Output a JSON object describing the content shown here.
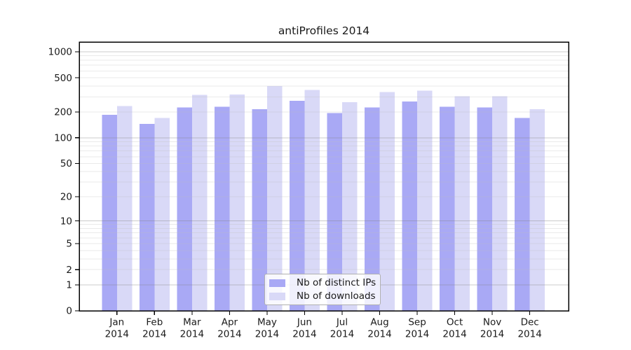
{
  "title": "antiProfiles 2014",
  "colors": {
    "ips_bar": "#a9a9f5",
    "downloads_bar": "#d9d9f7",
    "axis": "#000000",
    "text": "#1a1a1a",
    "legend_border": "#b0b0b0"
  },
  "chart_data": {
    "type": "bar",
    "title": "antiProfiles 2014",
    "categories": [
      "Jan 2014",
      "Feb 2014",
      "Mar 2014",
      "Apr 2014",
      "May 2014",
      "Jun 2014",
      "Jul 2014",
      "Aug 2014",
      "Sep 2014",
      "Oct 2014",
      "Nov 2014",
      "Dec 2014"
    ],
    "series": [
      {
        "name": "Nb of distinct IPs",
        "color": "#a9a9f5",
        "values": [
          185,
          145,
          225,
          230,
          215,
          270,
          195,
          225,
          265,
          230,
          225,
          170
        ]
      },
      {
        "name": "Nb of downloads",
        "color": "#d9d9f7",
        "values": [
          235,
          170,
          315,
          320,
          400,
          360,
          260,
          340,
          355,
          305,
          305,
          215
        ]
      }
    ],
    "xlabel": "",
    "ylabel": "",
    "y_axis": {
      "scale": "log1p",
      "ylim": [
        0,
        1000
      ],
      "tick_values": [
        0,
        1,
        2,
        5,
        10,
        20,
        50,
        100,
        200,
        500,
        1000
      ],
      "tick_labels": [
        "0",
        "1",
        "2",
        "5",
        "10",
        "20",
        "50",
        "100",
        "200",
        "500",
        "1000"
      ],
      "grid_minor": [
        2,
        3,
        4,
        5,
        6,
        7,
        8,
        9,
        20,
        30,
        40,
        50,
        60,
        70,
        80,
        90,
        200,
        300,
        400,
        500,
        600,
        700,
        800,
        900
      ],
      "grid_major": [
        1,
        10,
        100,
        1000
      ]
    },
    "grid": "on",
    "legend_position": "bottom-center"
  }
}
